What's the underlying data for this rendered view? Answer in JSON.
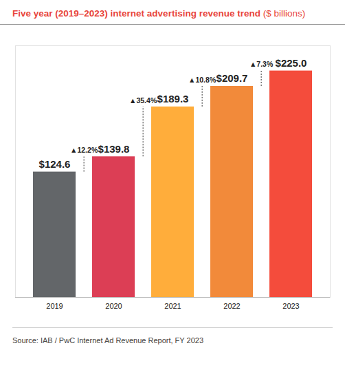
{
  "chart_data": {
    "type": "bar",
    "title": "Five year (2019–2023) internet advertising revenue trend",
    "subtitle": "($ billions)",
    "caption": "Source:  IAB / PwC Internet Ad Revenue Report, FY 2023",
    "categories": [
      "2019",
      "2020",
      "2021",
      "2022",
      "2023"
    ],
    "values": [
      124.6,
      139.8,
      189.3,
      209.7,
      225.0
    ],
    "value_labels": [
      "$124.6",
      "$139.8",
      "$189.3",
      "$209.7",
      "$225.0"
    ],
    "colors": [
      "#636669",
      "#dc3e55",
      "#ffad3b",
      "#f28a3a",
      "#f44c3c"
    ],
    "data_labels": true,
    "tick_labels": "x",
    "grid": false,
    "ylim": [
      0,
      250
    ],
    "annotations": [
      {
        "text": "▲12.2%",
        "from": "2019",
        "to": "2020"
      },
      {
        "text": "▲35.4%",
        "from": "2020",
        "to": "2021"
      },
      {
        "text": "▲10.8%",
        "from": "2021",
        "to": "2022"
      },
      {
        "text": "▲7.3%",
        "from": "2022",
        "to": "2023"
      }
    ]
  }
}
